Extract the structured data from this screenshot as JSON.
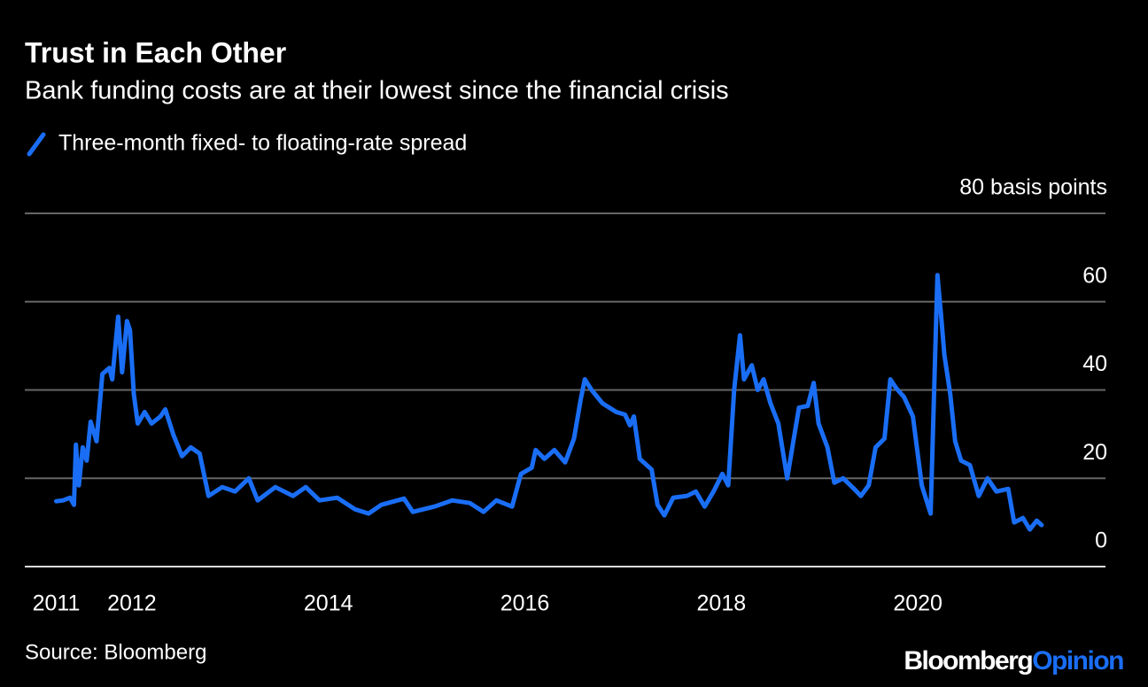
{
  "chart_data": {
    "type": "line",
    "title": "Trust in Each Other",
    "subtitle": "Bank funding costs are at their lowest since the financial crisis",
    "source": "Source: Bloomberg",
    "logo": [
      "Bloomberg",
      "Opinion"
    ],
    "xlim": [
      2010.91,
      2021.91
    ],
    "xticks": [
      {
        "value": 2011.23,
        "label": "2011"
      },
      2012,
      2014,
      2016,
      2018,
      2020
    ],
    "ylim": [
      0,
      80
    ],
    "yticks": [
      0,
      20,
      40,
      60,
      {
        "value": 80,
        "label": "80 basis points"
      }
    ],
    "grid": true,
    "x": [
      2011.23,
      2011.3,
      2011.37,
      2011.41,
      2011.43,
      2011.46,
      2011.5,
      2011.54,
      2011.58,
      2011.64,
      2011.7,
      2011.77,
      2011.8,
      2011.86,
      2011.9,
      2011.95,
      2011.98,
      2012.02,
      2012.06,
      2012.13,
      2012.2,
      2012.29,
      2012.34,
      2012.42,
      2012.51,
      2012.6,
      2012.69,
      2012.78,
      2012.92,
      2013.05,
      2013.19,
      2013.28,
      2013.46,
      2013.64,
      2013.77,
      2013.91,
      2014.09,
      2014.27,
      2014.41,
      2014.54,
      2014.77,
      2014.86,
      2015.08,
      2015.26,
      2015.44,
      2015.58,
      2015.71,
      2015.87,
      2015.96,
      2016.07,
      2016.11,
      2016.2,
      2016.3,
      2016.41,
      2016.5,
      2016.57,
      2016.61,
      2016.68,
      2016.79,
      2016.93,
      2017.02,
      2017.07,
      2017.11,
      2017.17,
      2017.29,
      2017.35,
      2017.42,
      2017.51,
      2017.65,
      2017.74,
      2017.83,
      2017.92,
      2018.01,
      2018.07,
      2018.13,
      2018.19,
      2018.23,
      2018.31,
      2018.37,
      2018.43,
      2018.5,
      2018.58,
      2018.67,
      2018.73,
      2018.79,
      2018.88,
      2018.94,
      2018.99,
      2019.08,
      2019.15,
      2019.24,
      2019.36,
      2019.42,
      2019.5,
      2019.57,
      2019.66,
      2019.72,
      2019.78,
      2019.86,
      2019.95,
      2020.04,
      2020.13,
      2020.2,
      2020.24,
      2020.27,
      2020.33,
      2020.38,
      2020.44,
      2020.53,
      2020.62,
      2020.71,
      2020.8,
      2020.92,
      2020.98,
      2021.07,
      2021.14,
      2021.21,
      2021.26
    ],
    "series": [
      {
        "name": "Three-month fixed- to floating-rate spread",
        "color": "#1a6ef5",
        "values": [
          14.8,
          15,
          15.6,
          14,
          27.6,
          18.4,
          27,
          24,
          32.8,
          28.4,
          43.6,
          45,
          42.4,
          56.6,
          44,
          55.6,
          53.6,
          39,
          32.4,
          35,
          32.4,
          34,
          35.6,
          30,
          25,
          27,
          25.6,
          16,
          18,
          17,
          20,
          15,
          18,
          16,
          18,
          15,
          15.6,
          13,
          12,
          14,
          15.4,
          12.4,
          13.6,
          15,
          14.4,
          12.4,
          15,
          13.6,
          21,
          22.4,
          26.4,
          24.4,
          26.4,
          23.6,
          29,
          38,
          42.4,
          40,
          37,
          35,
          34.4,
          32,
          34,
          24.4,
          22,
          14,
          11.6,
          15.6,
          16,
          17,
          13.6,
          17,
          21,
          18.4,
          40,
          52.4,
          42.4,
          45.6,
          40,
          42.4,
          37,
          32.4,
          20,
          28,
          36,
          36.4,
          41.6,
          32.4,
          27,
          19,
          20,
          17.4,
          16,
          18.4,
          27,
          29,
          42.4,
          40.4,
          38.4,
          34,
          18.4,
          12,
          66,
          56,
          48,
          39,
          28.4,
          24,
          23,
          16,
          20,
          17,
          17.6,
          10,
          11,
          8.4,
          10.4,
          9.4
        ]
      }
    ]
  }
}
